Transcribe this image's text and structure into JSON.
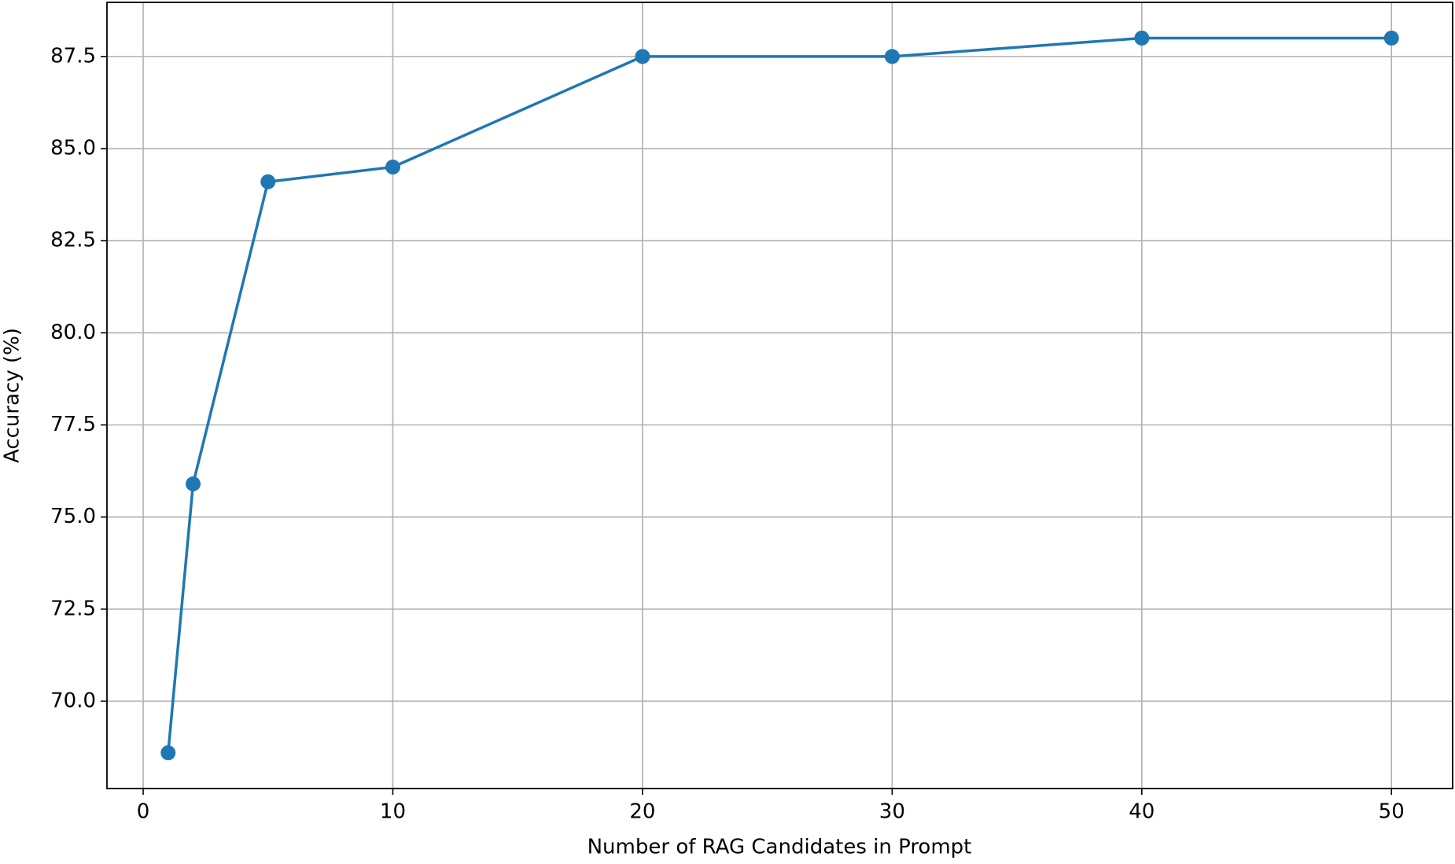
{
  "chart_data": {
    "type": "line",
    "xlabel": "Number of RAG Candidates in Prompt",
    "ylabel": "Accuracy (%)",
    "x": [
      1,
      2,
      5,
      10,
      20,
      30,
      40,
      50
    ],
    "series": [
      {
        "color": "#1f77b4",
        "values": [
          68.6,
          75.9,
          84.1,
          84.5,
          87.5,
          87.5,
          88.0,
          88.0
        ]
      }
    ],
    "xlim": [
      -1.45,
      52.45
    ],
    "ylim": [
      67.63,
      88.97
    ],
    "xticks": [
      0,
      10,
      20,
      30,
      40,
      50
    ],
    "yticks": [
      {
        "value": 70,
        "label": "70.0"
      },
      {
        "value": 72.5,
        "label": "72.5"
      },
      {
        "value": 75,
        "label": "75.0"
      },
      {
        "value": 77.5,
        "label": "77.5"
      },
      {
        "value": 80,
        "label": "80.0"
      },
      {
        "value": 82.5,
        "label": "82.5"
      },
      {
        "value": 85,
        "label": "85.0"
      },
      {
        "value": 87.5,
        "label": "87.5"
      }
    ],
    "grid": true
  }
}
